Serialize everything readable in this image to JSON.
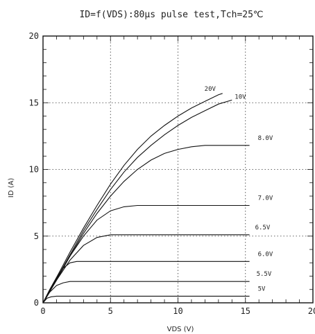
{
  "chart_data": {
    "type": "line",
    "title": "ID=f(VDS):80μs pulse test,Tch=25℃",
    "xlabel": "VDS (V)",
    "ylabel": "ID (A)",
    "xlim": [
      0,
      20
    ],
    "ylim": [
      0,
      20
    ],
    "xticks": [
      "0",
      "5",
      "10",
      "15",
      "20"
    ],
    "yticks": [
      "0",
      "5",
      "10",
      "15",
      "20"
    ],
    "grid": true,
    "series": [
      {
        "name": "20V",
        "x": [
          0,
          1,
          2,
          3,
          4,
          5,
          6,
          7,
          8,
          9,
          10,
          11,
          12,
          13,
          13.3
        ],
        "y": [
          0,
          1.9,
          3.8,
          5.6,
          7.3,
          8.9,
          10.3,
          11.5,
          12.5,
          13.3,
          14.0,
          14.6,
          15.1,
          15.6,
          15.7
        ]
      },
      {
        "name": "10V",
        "x": [
          0,
          1,
          2,
          3,
          4,
          5,
          6,
          7,
          8,
          9,
          10,
          11,
          12,
          13,
          14
        ],
        "y": [
          0,
          1.8,
          3.6,
          5.4,
          7.0,
          8.5,
          9.8,
          10.9,
          11.8,
          12.6,
          13.3,
          13.9,
          14.4,
          14.9,
          15.2
        ]
      },
      {
        "name": "8.0V",
        "x": [
          0,
          1,
          2,
          3,
          4,
          5,
          6,
          7,
          8,
          9,
          10,
          11,
          12,
          13,
          14,
          15.3
        ],
        "y": [
          0,
          1.7,
          3.5,
          5.2,
          6.7,
          8.0,
          9.1,
          10.0,
          10.7,
          11.2,
          11.5,
          11.7,
          11.8,
          11.8,
          11.8,
          11.8
        ]
      },
      {
        "name": "7.0V",
        "x": [
          0,
          1,
          2,
          3,
          4,
          5,
          6,
          7,
          8,
          10,
          12,
          15.3
        ],
        "y": [
          0,
          1.8,
          3.5,
          5.0,
          6.2,
          6.9,
          7.2,
          7.3,
          7.3,
          7.3,
          7.3,
          7.3
        ]
      },
      {
        "name": "6.5V",
        "x": [
          0,
          1,
          2,
          3,
          4,
          5,
          6,
          8,
          10,
          15.3
        ],
        "y": [
          0,
          1.7,
          3.2,
          4.3,
          4.9,
          5.1,
          5.1,
          5.1,
          5.1,
          5.1
        ]
      },
      {
        "name": "6.0V",
        "x": [
          0,
          0.5,
          1,
          1.5,
          2,
          2.5,
          3,
          4,
          6,
          10,
          15.3
        ],
        "y": [
          0,
          1.0,
          1.9,
          2.6,
          3.0,
          3.1,
          3.1,
          3.1,
          3.1,
          3.1,
          3.1
        ]
      },
      {
        "name": "5.5V",
        "x": [
          0,
          0.5,
          1,
          1.5,
          2,
          3,
          5,
          10,
          15.3
        ],
        "y": [
          0,
          0.8,
          1.3,
          1.5,
          1.6,
          1.6,
          1.6,
          1.6,
          1.6
        ]
      },
      {
        "name": "5V",
        "x": [
          0,
          0.3,
          0.6,
          1,
          2,
          5,
          10,
          15.3
        ],
        "y": [
          0,
          0.35,
          0.45,
          0.5,
          0.5,
          0.5,
          0.5,
          0.5
        ]
      }
    ]
  }
}
